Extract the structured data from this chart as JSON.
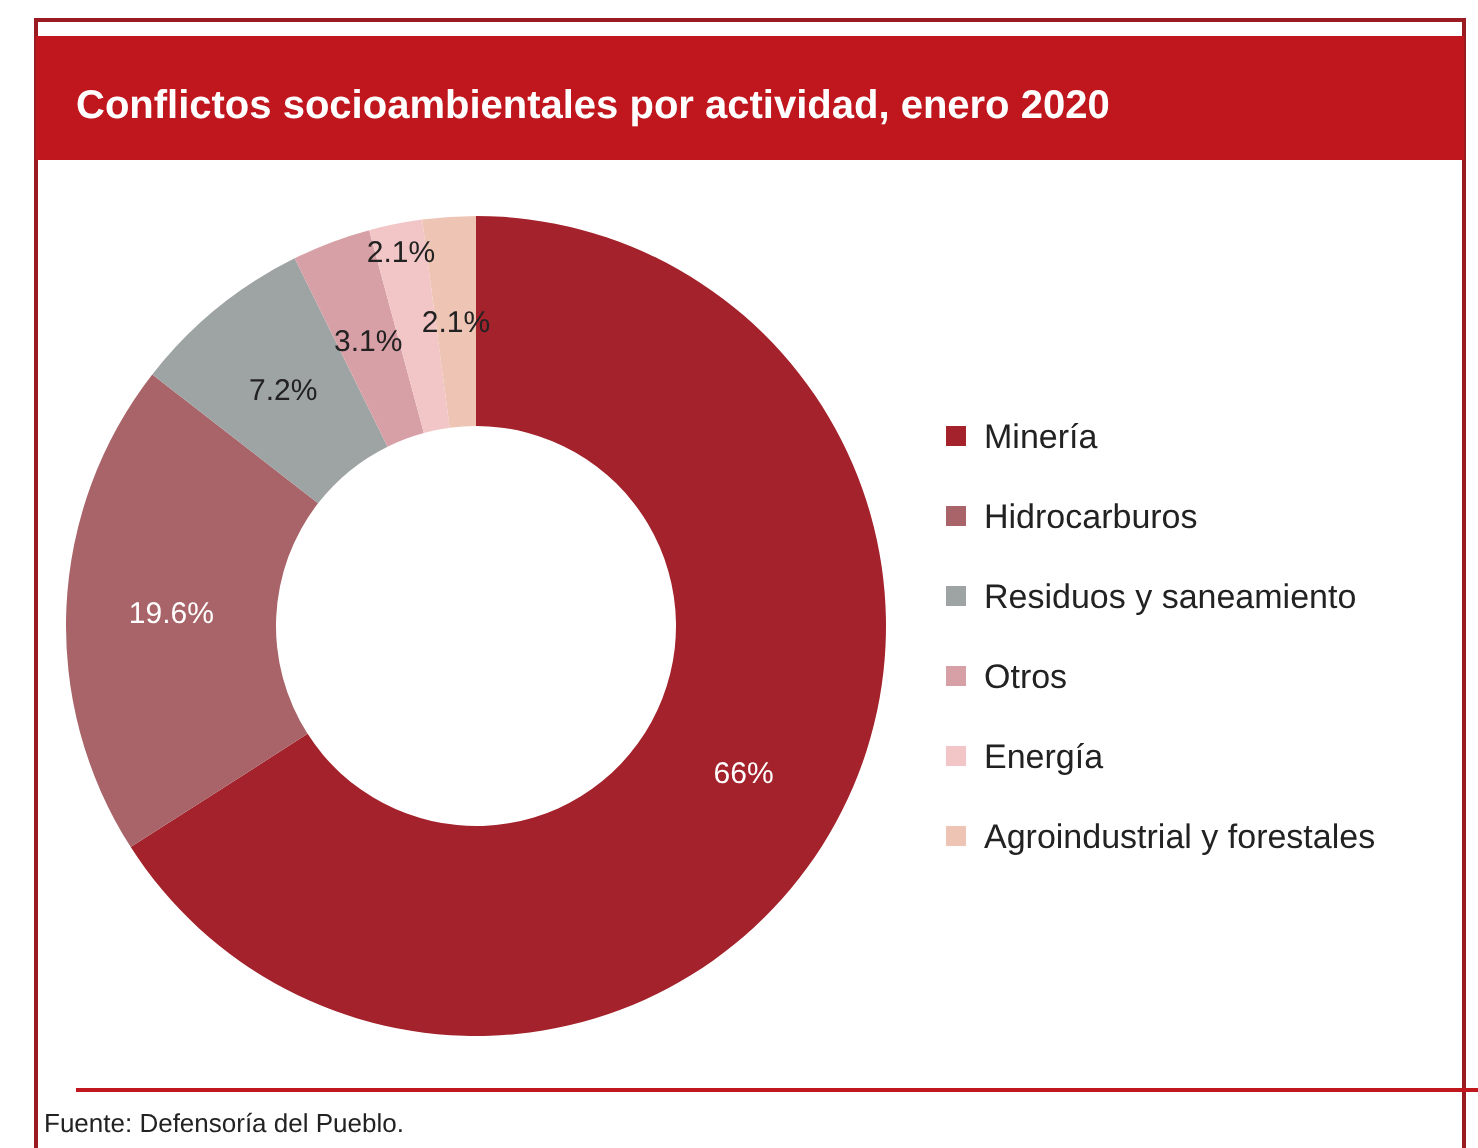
{
  "chart_data": {
    "type": "donut",
    "title": "Conflictos socioambientales por actividad, enero 2020",
    "categories": [
      "Minería",
      "Hidrocarburos",
      "Residuos y saneamiento",
      "Otros",
      "Energía",
      "Agroindustrial y forestales"
    ],
    "values": [
      66,
      19.6,
      7.2,
      3.1,
      2.1,
      2.1
    ],
    "value_labels": [
      "66%",
      "19.6%",
      "7.2%",
      "3.1%",
      "2.1%",
      "2.1%"
    ],
    "colors": [
      "#a3222b",
      "#a86468",
      "#9ea3a3",
      "#d7a0a6",
      "#f2c6c6",
      "#eec5b5"
    ],
    "legend": "right",
    "annotations": [
      "Fuente: Defensoría del Pueblo."
    ]
  }
}
